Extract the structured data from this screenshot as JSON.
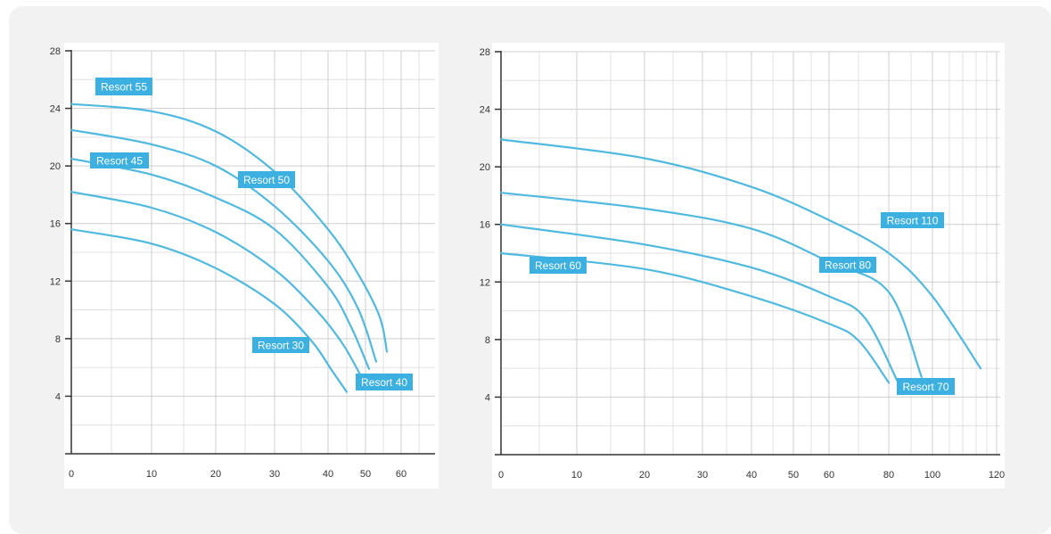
{
  "colors": {
    "curve": "#4fb9df",
    "label_bg": "#3cb0e0",
    "grid": "#cfcfcf",
    "axis": "#333333",
    "panel": "#ffffff",
    "card": "#f2f2f3"
  },
  "chart_data": [
    {
      "type": "line",
      "title": "",
      "xlabel": "",
      "ylabel": "",
      "x_ticks": [
        "0",
        "10",
        "20",
        "30",
        "40",
        "50",
        "60"
      ],
      "y_ticks": [
        "4",
        "8",
        "12",
        "16",
        "20",
        "24",
        "28"
      ],
      "ylim": [
        0,
        28
      ],
      "grid": true,
      "series": [
        {
          "name": "Resort 30",
          "points": [
            [
              0,
              15.6
            ],
            [
              10,
              14.6
            ],
            [
              20,
              12.9
            ],
            [
              30,
              10.4
            ],
            [
              37,
              7.8
            ],
            [
              41,
              5.8
            ],
            [
              45,
              4.3
            ]
          ]
        },
        {
          "name": "Resort 40",
          "points": [
            [
              0,
              18.2
            ],
            [
              10,
              17.1
            ],
            [
              20,
              15.4
            ],
            [
              30,
              12.8
            ],
            [
              38,
              9.9
            ],
            [
              44,
              7.6
            ],
            [
              49,
              5.3
            ]
          ]
        },
        {
          "name": "Resort 45",
          "points": [
            [
              0,
              20.5
            ],
            [
              10,
              19.4
            ],
            [
              20,
              17.8
            ],
            [
              30,
              15.6
            ],
            [
              40,
              11.6
            ],
            [
              46,
              8.9
            ],
            [
              51,
              5.9
            ]
          ]
        },
        {
          "name": "Resort 50",
          "points": [
            [
              0,
              22.5
            ],
            [
              10,
              21.5
            ],
            [
              20,
              20.0
            ],
            [
              30,
              17.2
            ],
            [
              40,
              13.4
            ],
            [
              48,
              10.1
            ],
            [
              53,
              6.4
            ]
          ]
        },
        {
          "name": "Resort 55",
          "points": [
            [
              0,
              24.3
            ],
            [
              10,
              23.8
            ],
            [
              20,
              22.4
            ],
            [
              30,
              19.6
            ],
            [
              40,
              15.6
            ],
            [
              48,
              12.5
            ],
            [
              54,
              9.5
            ],
            [
              56,
              7.1
            ]
          ]
        }
      ]
    },
    {
      "type": "line",
      "title": "",
      "xlabel": "",
      "ylabel": "",
      "x_ticks": [
        "0",
        "10",
        "20",
        "30",
        "40",
        "50",
        "60",
        "80",
        "100",
        "120"
      ],
      "y_ticks": [
        "4",
        "8",
        "12",
        "16",
        "20",
        "24",
        "28"
      ],
      "ylim": [
        0,
        28
      ],
      "grid": true,
      "series": [
        {
          "name": "Resort 60",
          "points": [
            [
              0,
              14.0
            ],
            [
              20,
              12.9
            ],
            [
              40,
              11.0
            ],
            [
              60,
              9.1
            ],
            [
              70,
              7.9
            ],
            [
              80,
              5.0
            ]
          ]
        },
        {
          "name": "Resort 70",
          "points": [
            [
              0,
              16.0
            ],
            [
              20,
              14.6
            ],
            [
              40,
              13.0
            ],
            [
              60,
              11.0
            ],
            [
              72,
              9.5
            ],
            [
              84,
              5.1
            ]
          ]
        },
        {
          "name": "Resort 80",
          "points": [
            [
              0,
              18.2
            ],
            [
              20,
              17.1
            ],
            [
              40,
              15.7
            ],
            [
              60,
              13.4
            ],
            [
              80,
              11.3
            ],
            [
              95,
              5.4
            ]
          ]
        },
        {
          "name": "Resort 110",
          "points": [
            [
              0,
              21.9
            ],
            [
              20,
              20.6
            ],
            [
              40,
              18.6
            ],
            [
              60,
              16.3
            ],
            [
              80,
              14.0
            ],
            [
              100,
              11.0
            ],
            [
              115,
              6.0
            ]
          ]
        }
      ]
    }
  ]
}
